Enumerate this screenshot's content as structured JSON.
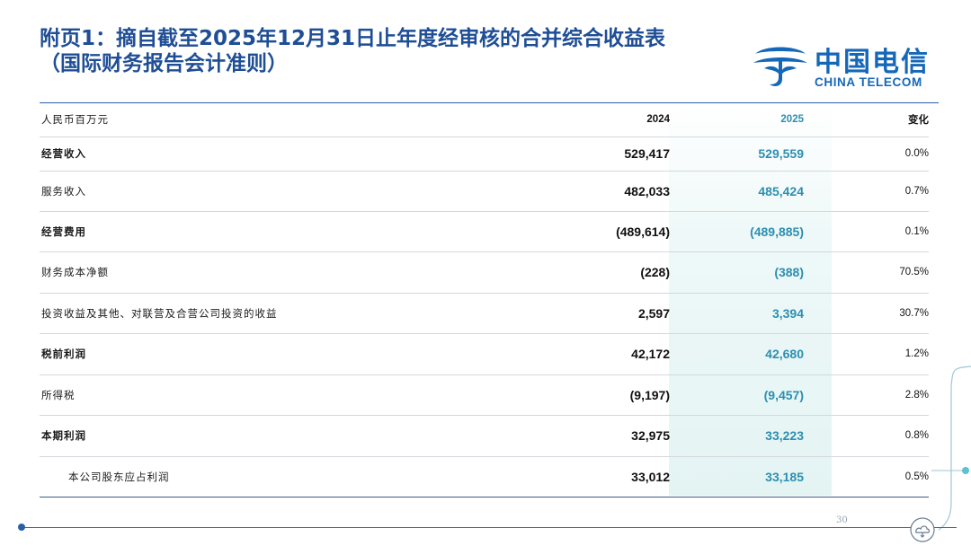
{
  "title": {
    "line1": "附页1：摘自截至2025年12月31日止年度经审核的合并综合收益表",
    "line2": "（国际财务报告会计准则）"
  },
  "logo": {
    "cn": "中国电信",
    "en": "CHINA TELECOM",
    "icon": "china-telecom-mark"
  },
  "table": {
    "header": {
      "unit": "人民币百万元",
      "col_2024": "2024",
      "col_2025": "2025",
      "col_change": "变化"
    },
    "rows": [
      {
        "label": "经营收入",
        "v2024": "529,417",
        "v2025": "529,559",
        "change": "0.0%"
      },
      {
        "label": "服务收入",
        "v2024": "482,033",
        "v2025": "485,424",
        "change": "0.7%"
      },
      {
        "label": "经营费用",
        "v2024": "(489,614)",
        "v2025": "(489,885)",
        "change": "0.1%"
      },
      {
        "label": "财务成本净额",
        "v2024": "(228)",
        "v2025": "(388)",
        "change": "70.5%"
      },
      {
        "label": "投资收益及其他、对联营及合营公司投资的收益",
        "v2024": "2,597",
        "v2025": "3,394",
        "change": "30.7%"
      },
      {
        "label": "税前利润",
        "v2024": "42,172",
        "v2025": "42,680",
        "change": "1.2%"
      },
      {
        "label": "所得税",
        "v2024": "(9,197)",
        "v2025": "(9,457)",
        "change": "2.8%"
      },
      {
        "label": "本期利润",
        "v2024": "32,975",
        "v2025": "33,223",
        "change": "0.8%"
      },
      {
        "label": "本公司股东应占利润",
        "v2024": "33,012",
        "v2025": "33,185",
        "change": "0.5%"
      }
    ]
  },
  "footer": {
    "page_number": "30"
  },
  "colors": {
    "brand_blue": "#1567b8",
    "title_blue": "#1f4e96",
    "accent_teal": "#2c8fb0"
  }
}
